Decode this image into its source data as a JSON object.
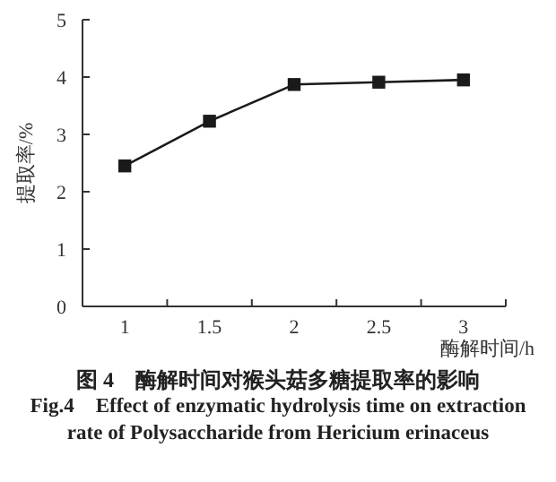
{
  "chart_data": {
    "type": "line",
    "title": "图 4　酶解时间对猴头菇多糖提取率的影响",
    "subtitle": "Fig.4　Effect of enzymatic hydrolysis time on extraction rate of Polysaccharide from Hericium erinaceus",
    "xlabel": "酶解时间/h",
    "ylabel": "提取率/%",
    "categories": [
      "1",
      "1.5",
      "2",
      "2.5",
      "3"
    ],
    "values": [
      2.45,
      3.23,
      3.87,
      3.91,
      3.95
    ],
    "color": "#1a1a1a",
    "marker": "square",
    "line_style": "solid",
    "ylim": [
      0,
      5
    ],
    "yticks": [
      0,
      1,
      2,
      3,
      4,
      5
    ]
  }
}
